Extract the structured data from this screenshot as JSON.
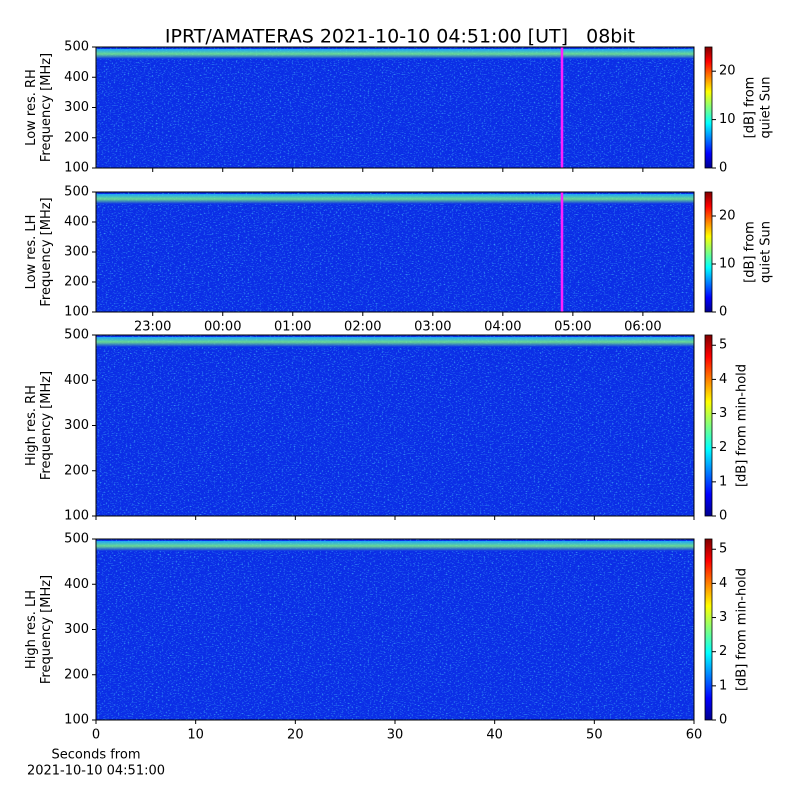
{
  "chart_data": [
    {
      "type": "heatmap",
      "title": "IPRT/AMATERAS 2021-10-10 04:51:00 [UT]   08bit",
      "ylabel": [
        "Low res. RH",
        "Frequency [MHz]"
      ],
      "ylim": [
        100,
        500
      ],
      "yticks": [
        100,
        200,
        300,
        400,
        500
      ],
      "xlim": [
        22.19,
        30.73
      ],
      "xticks": [
        {
          "value": 23,
          "label": "23:00"
        },
        {
          "value": 24,
          "label": "00:00"
        },
        {
          "value": 25,
          "label": "01:00"
        },
        {
          "value": 26,
          "label": "02:00"
        },
        {
          "value": 27,
          "label": "03:00"
        },
        {
          "value": 28,
          "label": "04:00"
        },
        {
          "value": 29,
          "label": "05:00"
        },
        {
          "value": 30,
          "label": "06:00"
        }
      ],
      "xtick_labels": false,
      "colorbar": {
        "label": [
          "[dB] from",
          "quiet Sun"
        ],
        "lim": [
          0,
          25
        ],
        "ticks": [
          0,
          10,
          20
        ],
        "colormap": "jet"
      }
    },
    {
      "type": "heatmap",
      "ylabel": [
        "Low res. LH",
        "Frequency [MHz]"
      ],
      "ylim": [
        100,
        500
      ],
      "yticks": [
        100,
        200,
        300,
        400,
        500
      ],
      "xlim": [
        22.19,
        30.73
      ],
      "xticks": [
        {
          "value": 23,
          "label": "23:00"
        },
        {
          "value": 24,
          "label": "00:00"
        },
        {
          "value": 25,
          "label": "01:00"
        },
        {
          "value": 26,
          "label": "02:00"
        },
        {
          "value": 27,
          "label": "03:00"
        },
        {
          "value": 28,
          "label": "04:00"
        },
        {
          "value": 29,
          "label": "05:00"
        },
        {
          "value": 30,
          "label": "06:00"
        }
      ],
      "xtick_labels": true,
      "colorbar": {
        "label": [
          "[dB] from",
          "quiet Sun"
        ],
        "lim": [
          0,
          25
        ],
        "ticks": [
          0,
          10,
          20
        ],
        "colormap": "jet"
      }
    },
    {
      "type": "heatmap",
      "ylabel": [
        "High res. RH",
        "Frequency [MHz]"
      ],
      "ylim": [
        100,
        500
      ],
      "yticks": [
        100,
        200,
        300,
        400,
        500
      ],
      "xlim": [
        0,
        60
      ],
      "xticks": [
        0,
        10,
        20,
        30,
        40,
        50,
        60
      ],
      "xtick_labels": false,
      "colorbar": {
        "label": [
          "[dB] from min-hold"
        ],
        "lim": [
          0,
          5.3
        ],
        "ticks": [
          0,
          1,
          2,
          3,
          4,
          5
        ],
        "colormap": "jet"
      }
    },
    {
      "type": "heatmap",
      "ylabel": [
        "High res. LH",
        "Frequency [MHz]"
      ],
      "ylim": [
        100,
        500
      ],
      "yticks": [
        100,
        200,
        300,
        400,
        500
      ],
      "xlim": [
        0,
        60
      ],
      "xticks": [
        0,
        10,
        20,
        30,
        40,
        50,
        60
      ],
      "xtick_labels": true,
      "xlabel": [
        "Seconds from",
        "2021-10-10 04:51:00"
      ],
      "colorbar": {
        "label": [
          "[dB] from min-hold"
        ],
        "lim": [
          0,
          5.3
        ],
        "ticks": [
          0,
          1,
          2,
          3,
          4,
          5
        ],
        "colormap": "jet"
      }
    }
  ]
}
